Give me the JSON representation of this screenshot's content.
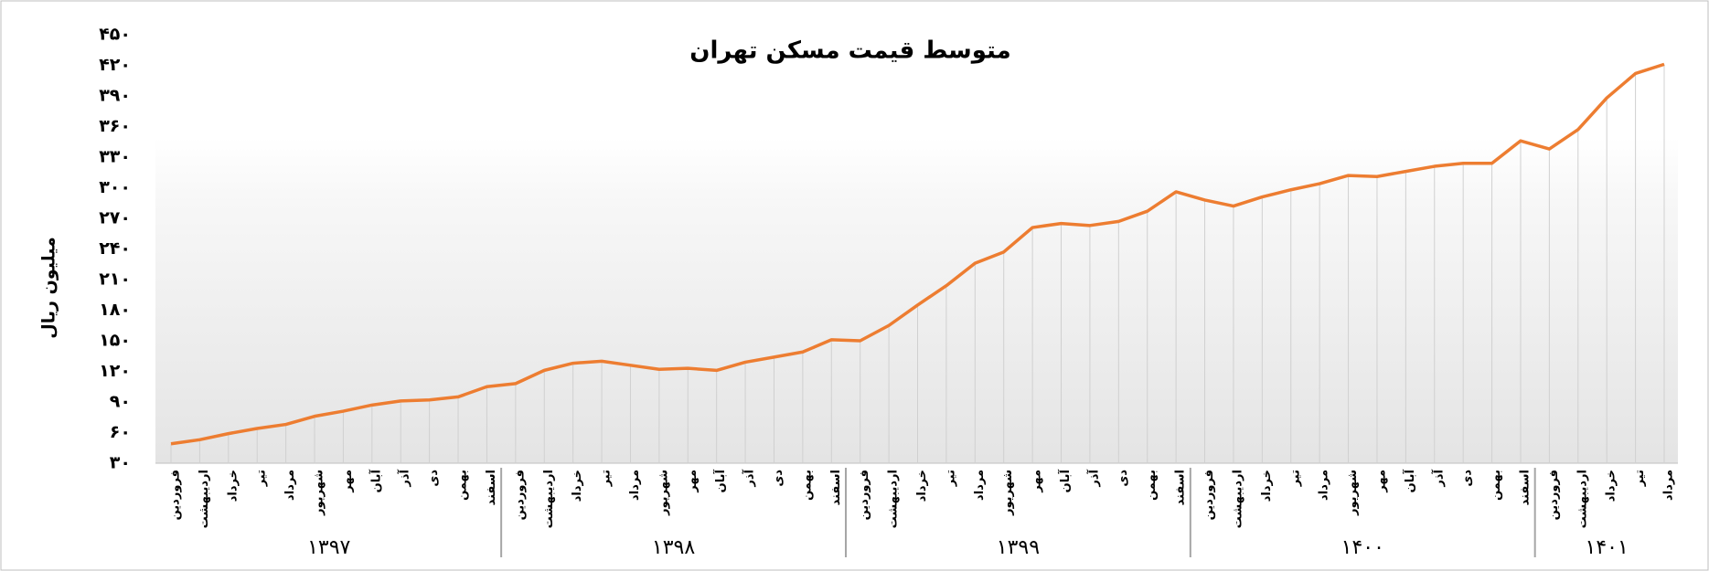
{
  "chart_data": {
    "type": "line",
    "title": "متوسط قیمت مسکن تهران",
    "y_label": "میلیون ریال",
    "categories": [
      "فروردین",
      "اردیبهشت",
      "خرداد",
      "تیر",
      "مرداد",
      "شهریور",
      "مهر",
      "آبان",
      "آذر",
      "دی",
      "بهمن",
      "اسفند",
      "فروردین",
      "اردیبهشت",
      "خرداد",
      "تیر",
      "مرداد",
      "شهریور",
      "مهر",
      "آبان",
      "آذر",
      "دی",
      "بهمن",
      "اسفند",
      "فروردین",
      "اردیبهشت",
      "خرداد",
      "تیر",
      "مرداد",
      "شهریور",
      "مهر",
      "آبان",
      "آذر",
      "دی",
      "بهمن",
      "اسفند",
      "فروردین",
      "اردیبهشت",
      "خرداد",
      "تیر",
      "مرداد",
      "شهریور",
      "مهر",
      "آبان",
      "آذر",
      "دی",
      "بهمن",
      "اسفند",
      "فروردین",
      "اردیبهشت",
      "خرداد",
      "تیر",
      "مرداد"
    ],
    "category_groups": [
      {
        "label": "۱۳۹۷",
        "size": 12
      },
      {
        "label": "۱۳۹۸",
        "size": 12
      },
      {
        "label": "۱۳۹۹",
        "size": 12
      },
      {
        "label": "۱۴۰۰",
        "size": 12
      },
      {
        "label": "۱۴۰۱",
        "size": 5
      }
    ],
    "series": [
      {
        "name": "متوسط قیمت",
        "color": "#ed7d31",
        "values": [
          49,
          53,
          59,
          64,
          68,
          76,
          81,
          87,
          91,
          92,
          95,
          105,
          108,
          121,
          128,
          130,
          126,
          122,
          123,
          121,
          129,
          134,
          139,
          151,
          150,
          165,
          185,
          204,
          226,
          237,
          261,
          265,
          263,
          267,
          277,
          296,
          288,
          282,
          291,
          298,
          304,
          312,
          311,
          316,
          321,
          324,
          324,
          346,
          338,
          357,
          388,
          412,
          421
        ]
      }
    ],
    "ylim": [
      30,
      450
    ],
    "yticks": [
      {
        "value": 30,
        "label": "۳۰"
      },
      {
        "value": 60,
        "label": "۶۰"
      },
      {
        "value": 90,
        "label": "۹۰"
      },
      {
        "value": 120,
        "label": "۱۲۰"
      },
      {
        "value": 150,
        "label": "۱۵۰"
      },
      {
        "value": 180,
        "label": "۱۸۰"
      },
      {
        "value": 210,
        "label": "۲۱۰"
      },
      {
        "value": 240,
        "label": "۲۴۰"
      },
      {
        "value": 270,
        "label": "۲۷۰"
      },
      {
        "value": 300,
        "label": "۳۰۰"
      },
      {
        "value": 330,
        "label": "۳۳۰"
      },
      {
        "value": 360,
        "label": "۳۶۰"
      },
      {
        "value": 390,
        "label": "۳۹۰"
      },
      {
        "value": 420,
        "label": "۴۲۰"
      },
      {
        "value": 450,
        "label": "۴۵۰"
      }
    ],
    "drop_lines": true
  }
}
